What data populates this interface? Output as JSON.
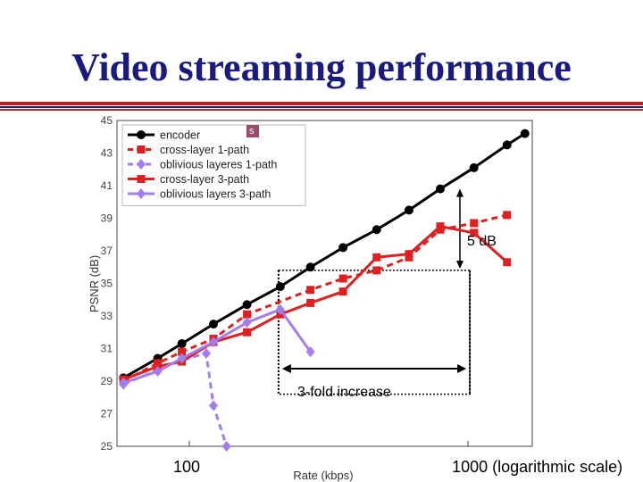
{
  "slide": {
    "title": "Video streaming performance"
  },
  "colors": {
    "title": "#1a1a80",
    "rule_red": "#b22222",
    "rule_blue": "#1a1a80",
    "encoder": "#000000",
    "cross_layer": "#e02020",
    "oblivious": "#a37cf0"
  },
  "annotations": {
    "gain": "5 dB",
    "fold": "3-fold increase",
    "legend_tag": "s"
  },
  "chart_data": {
    "type": "line",
    "title": "",
    "xlabel": "Rate (kbps)",
    "ylabel": "PSNR (dB)",
    "x_scale": "log",
    "xlim": [
      55,
      1700
    ],
    "ylim": [
      25,
      45
    ],
    "yticks": [
      25,
      27,
      29,
      31,
      33,
      35,
      37,
      39,
      41,
      43,
      45
    ],
    "xtick_labels": [
      {
        "value": 100,
        "label": "100"
      },
      {
        "value": 1000,
        "label": "1000 (logarithmic scale)"
      }
    ],
    "grid": true,
    "legend_position": "top-left",
    "series": [
      {
        "name": "encoder",
        "color": "#000000",
        "dash": false,
        "marker": "circle",
        "x": [
          58,
          77,
          94,
          122,
          161,
          212,
          272,
          356,
          470,
          614,
          795,
          1050,
          1380,
          1600
        ],
        "y": [
          29.2,
          30.4,
          31.3,
          32.5,
          33.7,
          34.8,
          36.0,
          37.2,
          38.3,
          39.5,
          40.8,
          42.1,
          43.5,
          44.2
        ]
      },
      {
        "name": "cross-layer 1-path",
        "color": "#e02020",
        "dash": true,
        "marker": "square",
        "x": [
          58,
          77,
          94,
          122,
          161,
          272,
          356,
          470,
          614,
          795,
          1050,
          1380
        ],
        "y": [
          29.0,
          30.1,
          30.8,
          31.6,
          33.1,
          34.6,
          35.3,
          35.8,
          36.6,
          38.3,
          38.7,
          39.2
        ]
      },
      {
        "name": "oblivious layeres 1-path",
        "color": "#a37cf0",
        "dash": true,
        "marker": "diamond",
        "x": [
          58,
          77,
          94,
          115,
          122,
          136
        ],
        "y": [
          28.8,
          29.7,
          30.3,
          30.7,
          27.5,
          25.0
        ]
      },
      {
        "name": "cross-layer 3-path",
        "color": "#e02020",
        "dash": false,
        "marker": "square",
        "x": [
          58,
          77,
          94,
          122,
          161,
          212,
          272,
          356,
          470,
          614,
          795,
          1050,
          1380
        ],
        "y": [
          29.1,
          29.9,
          30.2,
          31.4,
          32.0,
          33.1,
          33.8,
          34.5,
          36.6,
          36.8,
          38.5,
          38.1,
          36.3
        ]
      },
      {
        "name": "oblivious layers 3-path",
        "color": "#a37cf0",
        "dash": false,
        "marker": "diamond",
        "x": [
          58,
          77,
          94,
          122,
          161,
          212,
          272
        ],
        "y": [
          28.9,
          29.6,
          30.4,
          31.4,
          32.6,
          33.4,
          30.8
        ]
      }
    ]
  }
}
